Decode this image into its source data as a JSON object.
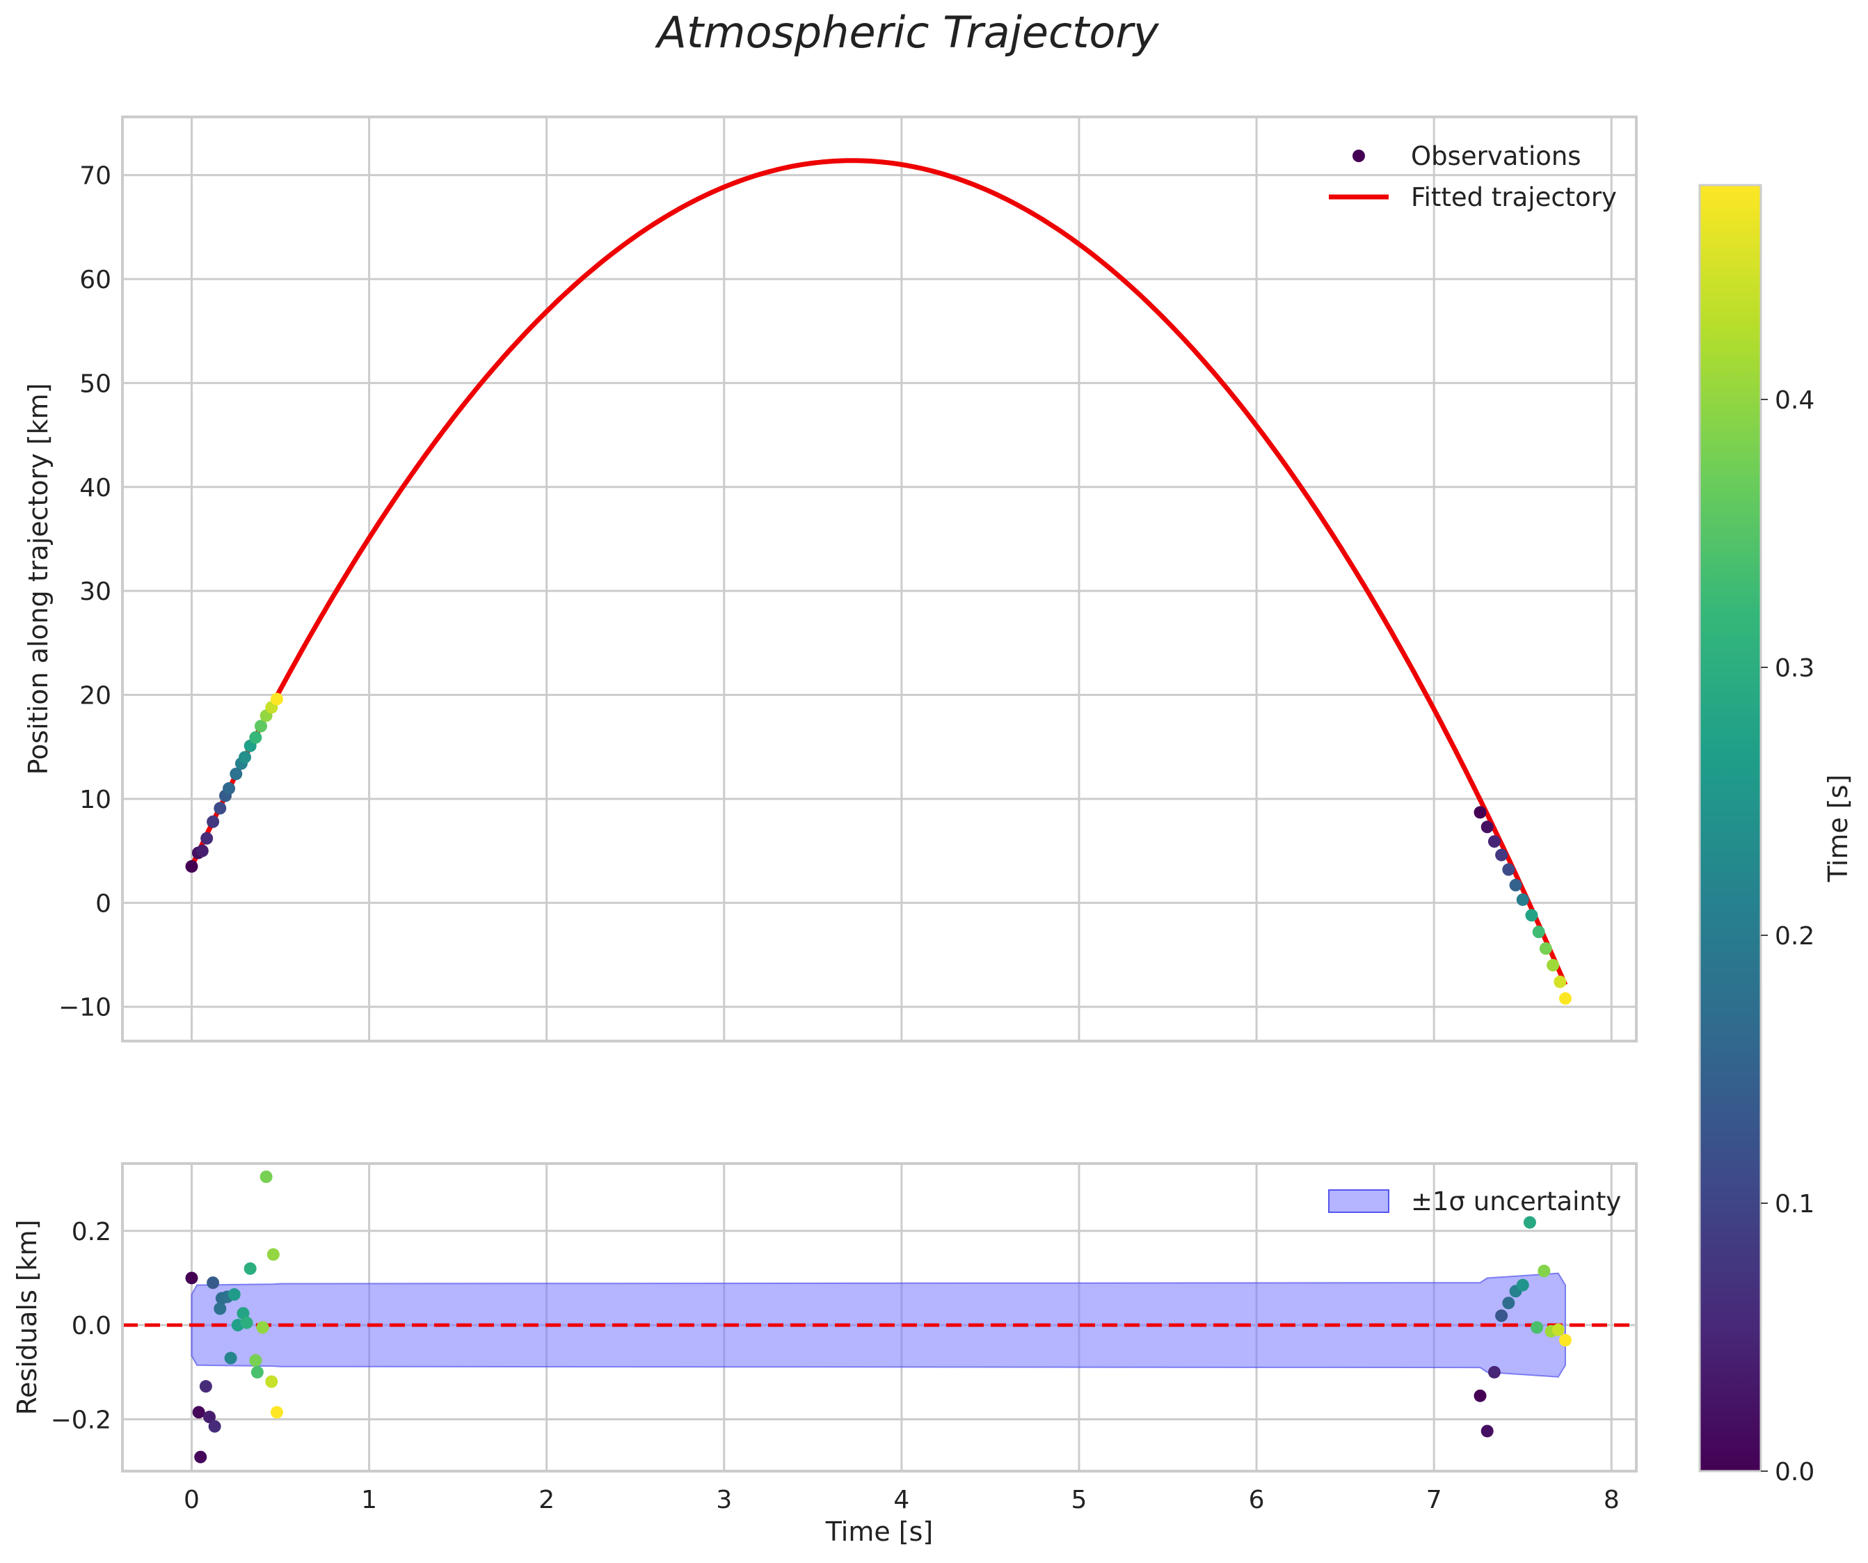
{
  "chart_data": {
    "type": "scatter",
    "title": "Atmospheric Trajectory",
    "main_panel": {
      "ylabel": "Position along trajectory [km]",
      "xlim": [
        -0.39,
        8.14
      ],
      "ylim": [
        -13.3,
        75.6
      ],
      "xticks": [
        0,
        1,
        2,
        3,
        4,
        5,
        6,
        7,
        8
      ],
      "yticks": [
        -10,
        0,
        10,
        20,
        30,
        40,
        50,
        60,
        70
      ],
      "ytick_labels": [
        "−10",
        "0",
        "10",
        "20",
        "30",
        "40",
        "50",
        "60",
        "70"
      ],
      "grid": true,
      "legend": {
        "position": "top-right",
        "observations_label": "Observations",
        "fit_label": "Fitted trajectory"
      },
      "fitted_trajectory": {
        "model": "quadratic",
        "t_peak": 3.72,
        "peak_position": 71.4,
        "start_position": 3.5,
        "t_start": 0.0,
        "t_end": 7.74,
        "color": "#ee0000"
      },
      "observations": [
        {
          "t": 0.0,
          "y": 3.5,
          "c": 0.0
        },
        {
          "t": 0.037,
          "y": 4.8,
          "c": 0.02
        },
        {
          "t": 0.06,
          "y": 5.0,
          "c": 0.04
        },
        {
          "t": 0.085,
          "y": 6.2,
          "c": 0.06
        },
        {
          "t": 0.12,
          "y": 7.8,
          "c": 0.08
        },
        {
          "t": 0.16,
          "y": 9.1,
          "c": 0.11
        },
        {
          "t": 0.19,
          "y": 10.3,
          "c": 0.14
        },
        {
          "t": 0.21,
          "y": 11.0,
          "c": 0.16
        },
        {
          "t": 0.25,
          "y": 12.4,
          "c": 0.18
        },
        {
          "t": 0.28,
          "y": 13.4,
          "c": 0.21
        },
        {
          "t": 0.3,
          "y": 14.0,
          "c": 0.24
        },
        {
          "t": 0.33,
          "y": 15.1,
          "c": 0.27
        },
        {
          "t": 0.36,
          "y": 15.9,
          "c": 0.32
        },
        {
          "t": 0.39,
          "y": 17.0,
          "c": 0.36
        },
        {
          "t": 0.42,
          "y": 18.0,
          "c": 0.4
        },
        {
          "t": 0.45,
          "y": 18.8,
          "c": 0.44
        },
        {
          "t": 0.48,
          "y": 19.6,
          "c": 0.48
        },
        {
          "t": 7.26,
          "y": 8.7,
          "c": 0.0
        },
        {
          "t": 7.3,
          "y": 7.3,
          "c": 0.02
        },
        {
          "t": 7.34,
          "y": 5.9,
          "c": 0.05
        },
        {
          "t": 7.38,
          "y": 4.6,
          "c": 0.08
        },
        {
          "t": 7.42,
          "y": 3.2,
          "c": 0.11
        },
        {
          "t": 7.46,
          "y": 1.7,
          "c": 0.15
        },
        {
          "t": 7.5,
          "y": 0.3,
          "c": 0.2
        },
        {
          "t": 7.55,
          "y": -1.2,
          "c": 0.28
        },
        {
          "t": 7.59,
          "y": -2.8,
          "c": 0.33
        },
        {
          "t": 7.63,
          "y": -4.4,
          "c": 0.38
        },
        {
          "t": 7.67,
          "y": -6.0,
          "c": 0.41
        },
        {
          "t": 7.71,
          "y": -7.6,
          "c": 0.45
        },
        {
          "t": 7.74,
          "y": -9.2,
          "c": 0.48
        }
      ]
    },
    "residual_panel": {
      "xlabel": "Time [s]",
      "ylabel": "Residuals [km]",
      "xlim": [
        -0.39,
        8.14
      ],
      "ylim": [
        -0.31,
        0.343
      ],
      "yticks": [
        -0.2,
        0.0,
        0.2
      ],
      "ytick_labels": [
        "−0.2",
        "0.0",
        "0.2"
      ],
      "grid": true,
      "zero_line_color": "#ee0000",
      "legend": {
        "position": "top-right",
        "band_label": "±1σ uncertainty"
      },
      "band_color": "#7777ff",
      "uncertainty_band": [
        {
          "t": 0.0,
          "lo": -0.065,
          "hi": 0.065
        },
        {
          "t": 0.03,
          "lo": -0.085,
          "hi": 0.085
        },
        {
          "t": 0.46,
          "lo": -0.087,
          "hi": 0.087
        },
        {
          "t": 0.5,
          "lo": -0.088,
          "hi": 0.088
        },
        {
          "t": 7.26,
          "lo": -0.09,
          "hi": 0.09
        },
        {
          "t": 7.3,
          "lo": -0.1,
          "hi": 0.1
        },
        {
          "t": 7.7,
          "lo": -0.11,
          "hi": 0.11
        },
        {
          "t": 7.74,
          "lo": -0.085,
          "hi": 0.085
        }
      ],
      "residuals": [
        {
          "t": 0.0,
          "r": 0.1,
          "c": 0.0
        },
        {
          "t": 0.04,
          "r": -0.185,
          "c": 0.01
        },
        {
          "t": 0.05,
          "r": -0.28,
          "c": 0.01
        },
        {
          "t": 0.08,
          "r": -0.13,
          "c": 0.06
        },
        {
          "t": 0.1,
          "r": -0.195,
          "c": 0.04
        },
        {
          "t": 0.12,
          "r": 0.09,
          "c": 0.14
        },
        {
          "t": 0.13,
          "r": -0.215,
          "c": 0.06
        },
        {
          "t": 0.16,
          "r": 0.035,
          "c": 0.18
        },
        {
          "t": 0.17,
          "r": 0.057,
          "c": 0.17
        },
        {
          "t": 0.2,
          "r": 0.06,
          "c": 0.18
        },
        {
          "t": 0.22,
          "r": -0.07,
          "c": 0.22
        },
        {
          "t": 0.24,
          "r": 0.065,
          "c": 0.26
        },
        {
          "t": 0.26,
          "r": 0.0,
          "c": 0.27
        },
        {
          "t": 0.29,
          "r": 0.025,
          "c": 0.28
        },
        {
          "t": 0.31,
          "r": 0.005,
          "c": 0.3
        },
        {
          "t": 0.33,
          "r": 0.12,
          "c": 0.3
        },
        {
          "t": 0.36,
          "r": -0.075,
          "c": 0.38
        },
        {
          "t": 0.37,
          "r": -0.1,
          "c": 0.34
        },
        {
          "t": 0.4,
          "r": -0.005,
          "c": 0.4
        },
        {
          "t": 0.42,
          "r": 0.315,
          "c": 0.38
        },
        {
          "t": 0.45,
          "r": -0.12,
          "c": 0.44
        },
        {
          "t": 0.46,
          "r": 0.15,
          "c": 0.4
        },
        {
          "t": 0.48,
          "r": -0.185,
          "c": 0.48
        },
        {
          "t": 7.26,
          "r": -0.15,
          "c": 0.0
        },
        {
          "t": 7.3,
          "r": -0.225,
          "c": 0.02
        },
        {
          "t": 7.34,
          "r": -0.1,
          "c": 0.05
        },
        {
          "t": 7.38,
          "r": 0.02,
          "c": 0.13
        },
        {
          "t": 7.42,
          "r": 0.047,
          "c": 0.17
        },
        {
          "t": 7.46,
          "r": 0.072,
          "c": 0.21
        },
        {
          "t": 7.5,
          "r": 0.085,
          "c": 0.25
        },
        {
          "t": 7.54,
          "r": 0.218,
          "c": 0.29
        },
        {
          "t": 7.58,
          "r": -0.005,
          "c": 0.34
        },
        {
          "t": 7.62,
          "r": 0.115,
          "c": 0.39
        },
        {
          "t": 7.66,
          "r": -0.013,
          "c": 0.41
        },
        {
          "t": 7.7,
          "r": -0.01,
          "c": 0.44
        },
        {
          "t": 7.74,
          "r": -0.032,
          "c": 0.48
        }
      ]
    },
    "colorbar": {
      "label": "Time [s]",
      "range": [
        0.0,
        0.48
      ],
      "ticks": [
        0.0,
        0.1,
        0.2,
        0.3,
        0.4
      ],
      "tick_labels": [
        "0.0",
        "0.1",
        "0.2",
        "0.3",
        "0.4"
      ],
      "colormap": "viridis",
      "stops": [
        "#440154",
        "#482878",
        "#3e4989",
        "#31688e",
        "#26828e",
        "#1f9e89",
        "#35b779",
        "#6ece58",
        "#b5de2b",
        "#fde725"
      ]
    }
  }
}
